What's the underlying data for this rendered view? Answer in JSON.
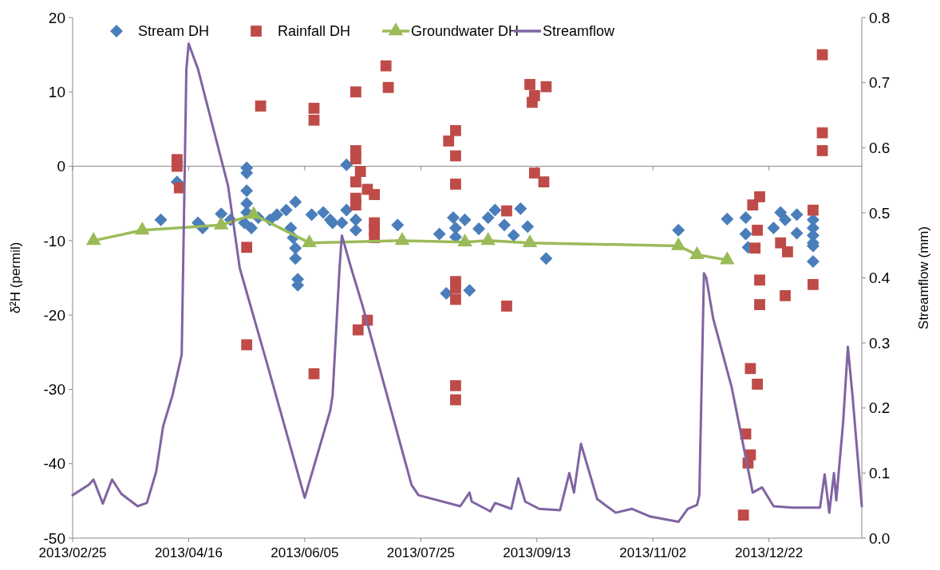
{
  "chart_data": {
    "type": "scatter",
    "xlabel": null,
    "ylabel": "δ²H (permil)",
    "y2label": "Streamflow (mm)",
    "xlim": [
      "2013-02-25",
      "2014-01-31"
    ],
    "xticks": [
      {
        "value": "2013-02-25",
        "label": "2013/02/25"
      },
      {
        "value": "2013-04-16",
        "label": "2013/04/16"
      },
      {
        "value": "2013-06-05",
        "label": "2013/06/05"
      },
      {
        "value": "2013-07-25",
        "label": "2013/07/25"
      },
      {
        "value": "2013-09-13",
        "label": "2013/09/13"
      },
      {
        "value": "2013-11-02",
        "label": "2013/11/02"
      },
      {
        "value": "2013-12-22",
        "label": "2013/12/22"
      }
    ],
    "ylim": [
      -50,
      20
    ],
    "yticks": [
      -50,
      -40,
      -30,
      -20,
      -10,
      0,
      10,
      20
    ],
    "y2lim": [
      0,
      0.8
    ],
    "y2ticks": [
      {
        "value": 0,
        "label": "0.0"
      },
      0.1,
      0.2,
      0.3,
      0.4,
      0.5,
      0.6,
      0.7,
      0.8
    ],
    "legend": "top",
    "series": [
      {
        "name": "Stream DH",
        "marker": "diamond",
        "color": "#4a7ebb",
        "x": [
          "2013-04-04",
          "2013-04-11",
          "2013-04-20",
          "2013-04-22",
          "2013-04-30",
          "2013-05-04",
          "2013-05-11",
          "2013-05-11",
          "2013-05-11",
          "2013-05-11",
          "2013-05-11",
          "2013-05-10",
          "2013-05-13",
          "2013-05-16",
          "2013-05-21",
          "2013-05-24",
          "2013-05-28",
          "2013-06-01",
          "2013-05-30",
          "2013-05-31",
          "2013-06-01",
          "2013-06-01",
          "2013-06-02",
          "2013-06-02",
          "2013-06-08",
          "2013-06-13",
          "2013-06-17",
          "2013-06-23",
          "2013-06-16",
          "2013-06-21",
          "2013-06-23",
          "2013-06-27",
          "2013-06-27",
          "2013-07-15",
          "2013-08-02",
          "2013-08-08",
          "2013-08-09",
          "2013-08-09",
          "2013-08-13",
          "2013-08-19",
          "2013-08-23",
          "2013-08-26",
          "2013-08-30",
          "2013-09-03",
          "2013-09-06",
          "2013-09-09",
          "2013-09-17",
          "2013-08-05",
          "2013-08-15",
          "2013-11-13",
          "2013-12-04",
          "2013-12-12",
          "2013-12-12",
          "2013-12-13",
          "2013-12-27",
          "2013-12-24",
          "2014-01-03",
          "2014-01-03",
          "2013-12-29",
          "2014-01-10",
          "2014-01-10",
          "2014-01-10",
          "2014-01-10",
          "2014-01-10",
          "2014-01-10"
        ],
        "values": [
          -7.2,
          -2.1,
          -7.6,
          -8.3,
          -6.4,
          -7.2,
          -0.2,
          -0.9,
          -3.3,
          -5.0,
          -6.2,
          -7.6,
          -8.3,
          -6.9,
          -7.2,
          -6.5,
          -5.9,
          -4.8,
          -8.3,
          -9.6,
          -11.0,
          -12.4,
          -15.2,
          -16.0,
          -6.5,
          -6.2,
          -7.6,
          0.2,
          -7.2,
          -7.6,
          -5.9,
          -8.6,
          -7.2,
          -7.9,
          -9.1,
          -6.9,
          -8.3,
          -9.5,
          -7.2,
          -8.4,
          -6.9,
          -5.9,
          -7.9,
          -9.3,
          -5.7,
          -8.1,
          -12.4,
          -17.1,
          -16.7,
          -8.6,
          -7.1,
          -6.9,
          -9.1,
          -10.9,
          -6.2,
          -8.3,
          -6.5,
          -9.0,
          -7.2,
          -7.2,
          -8.3,
          -9.3,
          -10.3,
          -10.7,
          -12.8
        ]
      },
      {
        "name": "Rainfall DH",
        "marker": "square",
        "color": "#be4b48",
        "x": [
          "2013-04-11",
          "2013-04-11",
          "2013-04-12",
          "2013-05-17",
          "2013-06-09",
          "2013-06-09",
          "2013-05-11",
          "2013-05-11",
          "2013-06-09",
          "2013-06-27",
          "2013-07-10",
          "2013-07-11",
          "2013-06-27",
          "2013-06-27",
          "2013-06-29",
          "2013-06-27",
          "2013-07-02",
          "2013-07-05",
          "2013-06-27",
          "2013-06-27",
          "2013-07-05",
          "2013-07-05",
          "2013-07-05",
          "2013-07-02",
          "2013-06-28",
          "2013-08-06",
          "2013-08-09",
          "2013-08-09",
          "2013-08-09",
          "2013-08-09",
          "2013-08-09",
          "2013-08-09",
          "2013-08-09",
          "2013-08-09",
          "2013-08-31",
          "2013-08-31",
          "2013-09-10",
          "2013-09-17",
          "2013-09-12",
          "2013-09-11",
          "2013-09-12",
          "2013-09-16",
          "2014-01-14",
          "2014-01-14",
          "2014-01-14",
          "2014-01-10",
          "2013-12-18",
          "2013-12-15",
          "2013-12-17",
          "2013-12-16",
          "2013-12-27",
          "2013-12-30",
          "2013-12-18",
          "2013-12-29",
          "2014-01-10",
          "2013-12-18",
          "2013-12-14",
          "2013-12-17",
          "2013-12-12",
          "2013-12-14",
          "2013-12-13",
          "2013-12-11"
        ],
        "values": [
          0.9,
          0.0,
          -2.9,
          8.1,
          7.8,
          6.2,
          -10.9,
          -24.0,
          -27.9,
          10.0,
          13.5,
          10.6,
          2.1,
          1.0,
          -0.7,
          -2.1,
          -3.1,
          -3.8,
          -4.3,
          -5.2,
          -7.6,
          -8.6,
          -9.6,
          -20.7,
          -22.0,
          3.4,
          4.8,
          1.4,
          -2.4,
          -15.5,
          -16.4,
          -17.9,
          -29.5,
          -31.4,
          -18.8,
          -6.0,
          11.0,
          10.7,
          9.5,
          8.6,
          -0.9,
          -2.1,
          15.0,
          4.5,
          2.1,
          -5.9,
          -4.1,
          -5.2,
          -8.6,
          -11.0,
          -10.3,
          -11.5,
          -15.3,
          -17.4,
          -15.9,
          -18.6,
          -27.2,
          -29.3,
          -36.0,
          -38.8,
          -39.9,
          -46.9
        ]
      },
      {
        "name": "Groundwater DH",
        "type": "line",
        "marker": "triangle",
        "color": "#9bbb59",
        "x": [
          "2013-03-06",
          "2013-03-27",
          "2013-04-30",
          "2013-05-14",
          "2013-06-07",
          "2013-07-17",
          "2013-08-13",
          "2013-08-23",
          "2013-09-10",
          "2013-11-13",
          "2013-11-21",
          "2013-12-04"
        ],
        "values": [
          -10.0,
          -8.6,
          -7.9,
          -6.5,
          -10.3,
          -10.0,
          -10.2,
          -10.0,
          -10.3,
          -10.7,
          -11.9,
          -12.6
        ]
      },
      {
        "name": "Streamflow",
        "type": "line",
        "marker": "none",
        "axis": "y2",
        "color": "#8064a2",
        "x": [
          "2013-02-25",
          "2013-03-04",
          "2013-03-06",
          "2013-03-10",
          "2013-03-14",
          "2013-03-18",
          "2013-03-25",
          "2013-03-29",
          "2013-04-02",
          "2013-04-05",
          "2013-04-09",
          "2013-04-13",
          "2013-04-14",
          "2013-04-15",
          "2013-04-16",
          "2013-04-20",
          "2013-05-03",
          "2013-05-08",
          "2013-05-19",
          "2013-06-05",
          "2013-06-16",
          "2013-06-17",
          "2013-06-20",
          "2013-06-21",
          "2013-06-25",
          "2013-06-30",
          "2013-07-21",
          "2013-07-24",
          "2013-08-11",
          "2013-08-15",
          "2013-08-16",
          "2013-08-24",
          "2013-08-26",
          "2013-09-02",
          "2013-09-05",
          "2013-09-08",
          "2013-09-14",
          "2013-09-23",
          "2013-09-27",
          "2013-09-29",
          "2013-10-02",
          "2013-10-09",
          "2013-10-17",
          "2013-10-24",
          "2013-11-01",
          "2013-11-13",
          "2013-11-17",
          "2013-11-21",
          "2013-11-22",
          "2013-11-24",
          "2013-11-25",
          "2013-11-28",
          "2013-12-06",
          "2013-12-15",
          "2013-12-19",
          "2013-12-24",
          "2014-01-01",
          "2014-01-13",
          "2014-01-15",
          "2014-01-17",
          "2014-01-19",
          "2014-01-20",
          "2014-01-23",
          "2014-01-25",
          "2014-01-27",
          "2014-01-31"
        ],
        "values": [
          0.066,
          0.082,
          0.09,
          0.053,
          0.09,
          0.068,
          0.049,
          0.054,
          0.102,
          0.172,
          0.219,
          0.282,
          0.5,
          0.72,
          0.76,
          0.721,
          0.541,
          0.415,
          0.278,
          0.062,
          0.196,
          0.219,
          0.415,
          0.465,
          0.415,
          0.356,
          0.082,
          0.066,
          0.049,
          0.07,
          0.056,
          0.041,
          0.054,
          0.045,
          0.092,
          0.056,
          0.045,
          0.043,
          0.1,
          0.07,
          0.145,
          0.06,
          0.039,
          0.045,
          0.033,
          0.025,
          0.045,
          0.051,
          0.066,
          0.407,
          0.4,
          0.337,
          0.231,
          0.07,
          0.078,
          0.049,
          0.047,
          0.047,
          0.098,
          0.039,
          0.1,
          0.058,
          0.18,
          0.294,
          0.219,
          0.049
        ]
      }
    ]
  }
}
